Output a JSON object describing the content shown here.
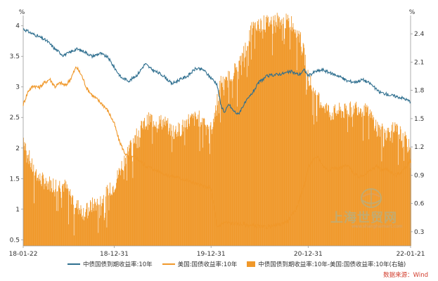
{
  "chart_data": {
    "type": "bar+line",
    "title": "",
    "left_axis": {
      "unit": "%",
      "ticks": [
        "0.5",
        "1",
        "1.5",
        "2",
        "2.5",
        "3",
        "3.5",
        "4"
      ],
      "range": [
        0.4,
        4.1
      ]
    },
    "right_axis": {
      "unit": "%",
      "ticks": [
        "0.3",
        "0.6",
        "0.9",
        "1.2",
        "1.5",
        "1.8",
        "2.1",
        "2.4"
      ],
      "range": [
        0.15,
        2.55
      ]
    },
    "x_ticks": [
      "18-01-22",
      "18-12-31",
      "19-12-31",
      "20-12-31",
      "22-01-21"
    ],
    "x_tick_days": [
      0,
      343,
      708,
      1074,
      1460
    ],
    "total_days": 1460,
    "series": [
      {
        "name": "中债国债到期收益率:10年",
        "axis": "left",
        "kind": "line",
        "color": "#2f6f8f",
        "points": [
          [
            0,
            3.95
          ],
          [
            30,
            3.88
          ],
          [
            60,
            3.82
          ],
          [
            90,
            3.75
          ],
          [
            120,
            3.62
          ],
          [
            150,
            3.52
          ],
          [
            170,
            3.55
          ],
          [
            200,
            3.62
          ],
          [
            230,
            3.58
          ],
          [
            260,
            3.5
          ],
          [
            290,
            3.55
          ],
          [
            320,
            3.48
          ],
          [
            343,
            3.32
          ],
          [
            370,
            3.15
          ],
          [
            400,
            3.1
          ],
          [
            430,
            3.2
          ],
          [
            460,
            3.38
          ],
          [
            480,
            3.3
          ],
          [
            500,
            3.25
          ],
          [
            530,
            3.18
          ],
          [
            560,
            3.05
          ],
          [
            590,
            3.12
          ],
          [
            620,
            3.18
          ],
          [
            650,
            3.3
          ],
          [
            680,
            3.28
          ],
          [
            700,
            3.18
          ],
          [
            708,
            3.15
          ],
          [
            730,
            3.05
          ],
          [
            745,
            2.7
          ],
          [
            760,
            2.58
          ],
          [
            775,
            2.72
          ],
          [
            790,
            2.62
          ],
          [
            810,
            2.55
          ],
          [
            830,
            2.7
          ],
          [
            860,
            2.88
          ],
          [
            890,
            3.08
          ],
          [
            920,
            3.18
          ],
          [
            950,
            3.2
          ],
          [
            980,
            3.22
          ],
          [
            1010,
            3.25
          ],
          [
            1040,
            3.2
          ],
          [
            1060,
            3.28
          ],
          [
            1074,
            3.18
          ],
          [
            1100,
            3.25
          ],
          [
            1130,
            3.28
          ],
          [
            1160,
            3.22
          ],
          [
            1190,
            3.18
          ],
          [
            1220,
            3.1
          ],
          [
            1250,
            3.08
          ],
          [
            1280,
            3.12
          ],
          [
            1310,
            3.05
          ],
          [
            1340,
            2.92
          ],
          [
            1370,
            2.88
          ],
          [
            1400,
            2.85
          ],
          [
            1430,
            2.82
          ],
          [
            1460,
            2.76
          ]
        ]
      },
      {
        "name": "美国:国债收益率:10年",
        "axis": "right",
        "kind": "line",
        "color": "#f0982a",
        "points": [
          [
            0,
            1.65
          ],
          [
            20,
            1.8
          ],
          [
            40,
            1.85
          ],
          [
            60,
            1.83
          ],
          [
            80,
            1.88
          ],
          [
            100,
            1.92
          ],
          [
            120,
            1.84
          ],
          [
            140,
            1.88
          ],
          [
            160,
            1.85
          ],
          [
            180,
            1.93
          ],
          [
            200,
            2.05
          ],
          [
            220,
            1.96
          ],
          [
            240,
            1.82
          ],
          [
            260,
            1.75
          ],
          [
            280,
            1.7
          ],
          [
            300,
            1.65
          ],
          [
            320,
            1.58
          ],
          [
            343,
            1.45
          ],
          [
            360,
            1.28
          ],
          [
            380,
            1.15
          ],
          [
            400,
            1.07
          ],
          [
            420,
            1.1
          ],
          [
            440,
            1.05
          ],
          [
            460,
            1.0
          ],
          [
            480,
            0.98
          ],
          [
            500,
            0.95
          ],
          [
            520,
            0.93
          ],
          [
            540,
            0.9
          ],
          [
            560,
            0.89
          ],
          [
            580,
            0.88
          ],
          [
            600,
            0.86
          ],
          [
            620,
            0.84
          ],
          [
            640,
            0.82
          ],
          [
            660,
            0.8
          ],
          [
            680,
            0.78
          ],
          [
            700,
            0.77
          ],
          [
            708,
            0.75
          ],
          [
            720,
            0.55
          ],
          [
            730,
            0.35
          ],
          [
            745,
            0.38
          ],
          [
            760,
            0.4
          ],
          [
            790,
            0.39
          ],
          [
            820,
            0.38
          ],
          [
            850,
            0.37
          ],
          [
            880,
            0.36
          ],
          [
            910,
            0.35
          ],
          [
            940,
            0.36
          ],
          [
            970,
            0.38
          ],
          [
            1000,
            0.42
          ],
          [
            1030,
            0.55
          ],
          [
            1060,
            0.8
          ],
          [
            1074,
            0.98
          ],
          [
            1090,
            1.05
          ],
          [
            1110,
            1.1
          ],
          [
            1130,
            1.0
          ],
          [
            1150,
            0.95
          ],
          [
            1170,
            0.98
          ],
          [
            1190,
            0.97
          ],
          [
            1210,
            1.0
          ],
          [
            1230,
            0.99
          ],
          [
            1250,
            0.9
          ],
          [
            1270,
            0.88
          ],
          [
            1290,
            0.92
          ],
          [
            1310,
            0.95
          ],
          [
            1330,
            1.0
          ],
          [
            1350,
            0.95
          ],
          [
            1370,
            0.97
          ],
          [
            1400,
            0.9
          ],
          [
            1420,
            0.92
          ],
          [
            1440,
            0.98
          ],
          [
            1460,
            1.05
          ]
        ]
      },
      {
        "name": "中债国债到期收益率:10年-美国:国债收益率:10年(右轴)",
        "axis": "right",
        "kind": "bar",
        "color": "#f0982a",
        "points": [
          [
            0,
            1.3
          ],
          [
            30,
            1.0
          ],
          [
            60,
            0.86
          ],
          [
            90,
            0.82
          ],
          [
            120,
            0.8
          ],
          [
            150,
            0.8
          ],
          [
            170,
            0.73
          ],
          [
            200,
            0.58
          ],
          [
            230,
            0.5
          ],
          [
            260,
            0.58
          ],
          [
            290,
            0.62
          ],
          [
            320,
            0.72
          ],
          [
            343,
            0.8
          ],
          [
            370,
            1.0
          ],
          [
            400,
            1.2
          ],
          [
            430,
            1.35
          ],
          [
            460,
            1.45
          ],
          [
            480,
            1.5
          ],
          [
            500,
            1.47
          ],
          [
            530,
            1.46
          ],
          [
            560,
            1.37
          ],
          [
            590,
            1.38
          ],
          [
            620,
            1.48
          ],
          [
            650,
            1.5
          ],
          [
            680,
            1.5
          ],
          [
            700,
            1.41
          ],
          [
            708,
            1.38
          ],
          [
            730,
            1.7
          ],
          [
            745,
            1.9
          ],
          [
            760,
            1.85
          ],
          [
            775,
            1.95
          ],
          [
            790,
            2.0
          ],
          [
            810,
            2.05
          ],
          [
            830,
            2.2
          ],
          [
            860,
            2.45
          ],
          [
            890,
            2.5
          ],
          [
            920,
            2.52
          ],
          [
            950,
            2.55
          ],
          [
            980,
            2.53
          ],
          [
            1010,
            2.52
          ],
          [
            1040,
            2.4
          ],
          [
            1060,
            2.15
          ],
          [
            1074,
            1.95
          ],
          [
            1100,
            1.72
          ],
          [
            1130,
            1.65
          ],
          [
            1160,
            1.55
          ],
          [
            1190,
            1.58
          ],
          [
            1220,
            1.57
          ],
          [
            1250,
            1.63
          ],
          [
            1280,
            1.6
          ],
          [
            1310,
            1.52
          ],
          [
            1340,
            1.38
          ],
          [
            1370,
            1.35
          ],
          [
            1400,
            1.38
          ],
          [
            1430,
            1.32
          ],
          [
            1460,
            1.15
          ]
        ]
      }
    ],
    "legend_position": "bottom"
  },
  "source": "数据来源：Wind",
  "watermark": {
    "name": "上海世贸网",
    "sub": "www.shanghaimart.com"
  }
}
